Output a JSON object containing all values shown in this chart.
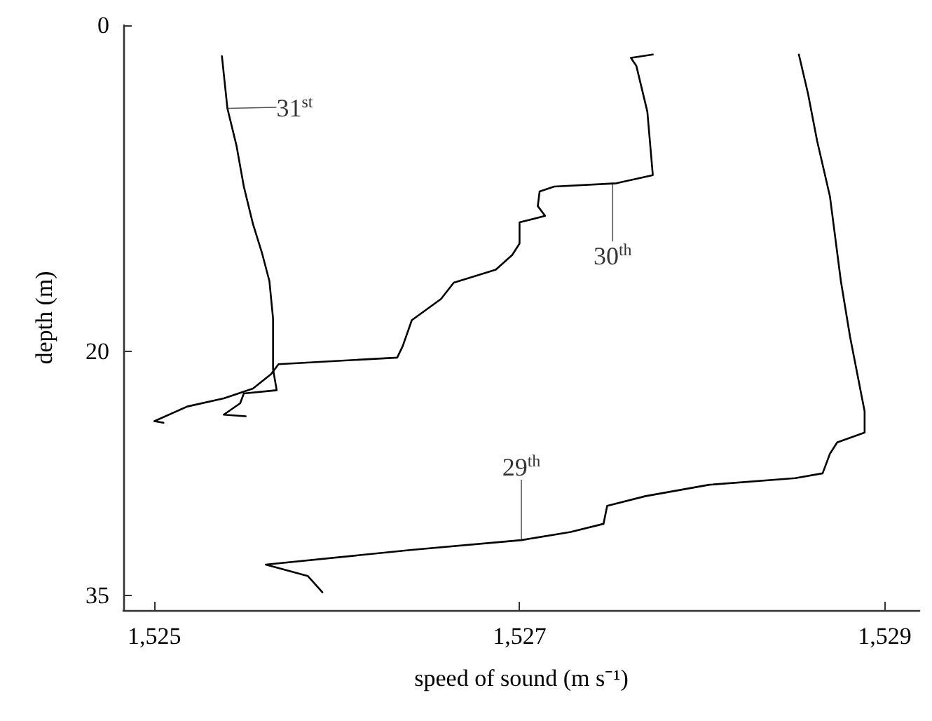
{
  "chart_data": {
    "type": "line",
    "xlabel": "speed of sound (m s⁻¹)",
    "ylabel": "depth (m)",
    "xlim": [
      1524.83,
      1529.19
    ],
    "ylim": [
      35.9,
      0
    ],
    "xticks": [
      {
        "value": 1525,
        "label": "1,525"
      },
      {
        "value": 1527,
        "label": "1,527"
      },
      {
        "value": 1529,
        "label": "1,529"
      }
    ],
    "yticks": [
      0,
      20,
      35
    ],
    "grid": false,
    "marker": "none",
    "line_style": "solid",
    "series": [
      {
        "color": "#000000",
        "x": [
          1525.37,
          1525.4,
          1525.45,
          1525.49,
          1525.54,
          1525.59,
          1525.63,
          1525.65,
          1525.65,
          1525.67,
          1525.49,
          1525.47,
          1525.38,
          1525.5
        ],
        "values": [
          1.9,
          5.1,
          7.4,
          9.9,
          12.2,
          14.0,
          15.7,
          18.0,
          21.1,
          22.4,
          22.6,
          23.2,
          23.9,
          24.0
        ]
      },
      {
        "color": "#000000",
        "x": [
          1527.73,
          1527.61,
          1527.64,
          1527.7,
          1527.73,
          1527.53,
          1527.19,
          1527.11,
          1527.1,
          1527.14,
          1527.0,
          1527.0,
          1526.96,
          1526.87,
          1526.64,
          1526.57,
          1526.41,
          1526.36,
          1526.33,
          1525.68,
          1525.64,
          1525.54,
          1525.38,
          1525.18,
          1525.0,
          1525.05
        ],
        "values": [
          1.8,
          2.0,
          2.5,
          5.3,
          9.2,
          9.7,
          9.9,
          10.2,
          11.1,
          11.7,
          12.1,
          13.4,
          14.1,
          15.0,
          15.8,
          16.8,
          18.1,
          19.7,
          20.4,
          20.8,
          21.4,
          22.3,
          22.9,
          23.4,
          24.3,
          24.4
        ]
      },
      {
        "color": "#000000",
        "x": [
          1528.53,
          1528.58,
          1528.63,
          1528.7,
          1528.76,
          1528.81,
          1528.89,
          1528.89,
          1528.74,
          1528.7,
          1528.66,
          1528.51,
          1528.04,
          1527.69,
          1527.48,
          1527.46,
          1527.28,
          1527.01,
          1526.41,
          1525.61,
          1525.84,
          1525.92
        ],
        "values": [
          1.8,
          4.2,
          7.1,
          10.5,
          15.7,
          19.1,
          23.7,
          25.0,
          25.6,
          26.3,
          27.5,
          27.8,
          28.2,
          28.9,
          29.5,
          30.6,
          31.1,
          31.6,
          32.2,
          33.1,
          33.8,
          34.8
        ]
      }
    ],
    "annotations": [
      {
        "text": "31$^{st}$",
        "x": 1525.4,
        "y": 5.1
      },
      {
        "text": "30$^{th}$",
        "x": 1527.51,
        "y": 9.7
      },
      {
        "text": "29$^{th}$",
        "x": 1527.01,
        "y": 31.6
      }
    ]
  }
}
